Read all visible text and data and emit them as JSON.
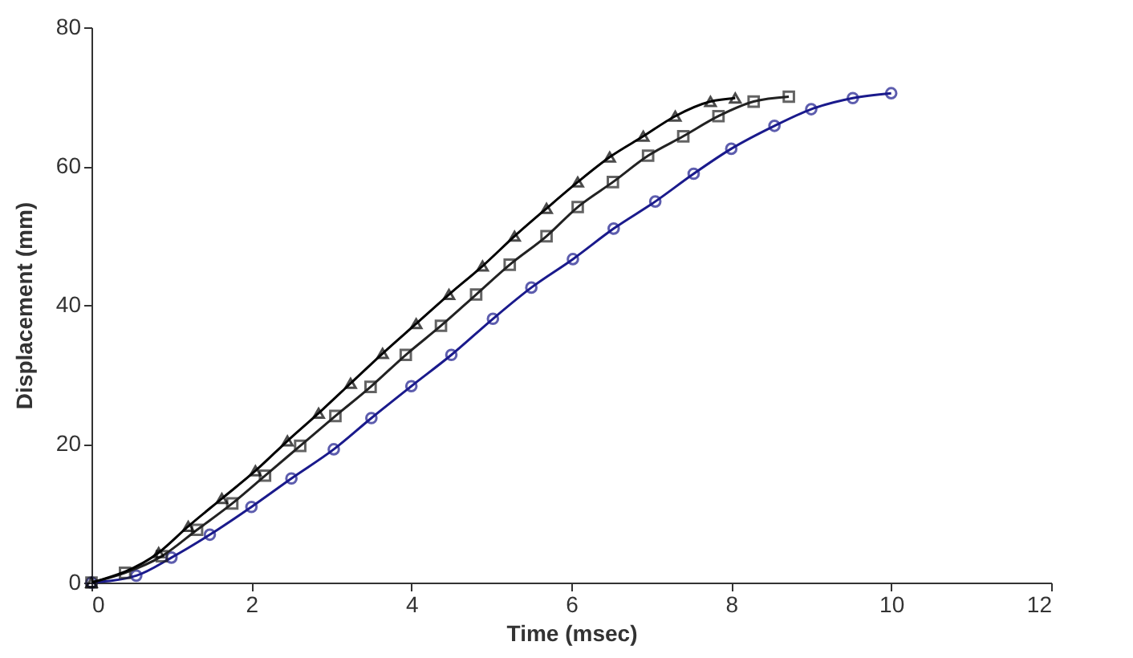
{
  "chart_data": {
    "type": "line",
    "xlabel": "Time (msec)",
    "ylabel": "Displacement (mm)",
    "xlim": [
      0,
      12
    ],
    "ylim": [
      0,
      80
    ],
    "xticks": [
      0,
      2,
      4,
      6,
      8,
      10,
      12
    ],
    "yticks": [
      0,
      20,
      40,
      60,
      80
    ],
    "grid": false,
    "line_style": "solid",
    "series": [
      {
        "color": "#1a1a8c",
        "marker": "circle",
        "x": [
          0,
          0.56,
          1.0,
          1.48,
          2.0,
          2.5,
          3.03,
          3.5,
          4.0,
          4.5,
          5.02,
          5.5,
          6.02,
          6.53,
          7.05,
          7.53,
          8.0,
          8.54,
          9.0,
          9.52,
          10.0
        ],
        "values": [
          0,
          1,
          3.6,
          6.9,
          10.9,
          15,
          19.2,
          23.7,
          28.3,
          32.8,
          38,
          42.5,
          46.6,
          51,
          54.9,
          58.9,
          62.5,
          65.8,
          68.2,
          69.8,
          70.5
        ]
      },
      {
        "color": "#222222",
        "marker": "square",
        "x": [
          0,
          0.42,
          0.88,
          1.32,
          1.76,
          2.17,
          2.61,
          3.05,
          3.49,
          3.93,
          4.37,
          4.81,
          5.23,
          5.69,
          6.08,
          6.52,
          6.96,
          7.4,
          7.84,
          8.28,
          8.72
        ],
        "values": [
          0,
          1.4,
          3.8,
          7.6,
          11.4,
          15.4,
          19.7,
          24.0,
          28.2,
          32.8,
          37.0,
          41.5,
          45.8,
          49.9,
          54.1,
          57.7,
          61.5,
          64.3,
          67.2,
          69.3,
          70.0
        ]
      },
      {
        "color": "#000000",
        "marker": "triangle",
        "x": [
          0,
          0.84,
          1.21,
          1.63,
          2.05,
          2.45,
          2.84,
          3.24,
          3.64,
          4.06,
          4.47,
          4.89,
          5.29,
          5.69,
          6.08,
          6.48,
          6.9,
          7.3,
          7.74,
          8.05
        ],
        "values": [
          0,
          4.3,
          8.1,
          12.1,
          16.1,
          20.4,
          24.4,
          28.7,
          33.0,
          37.3,
          41.5,
          45.6,
          49.9,
          53.9,
          57.7,
          61.3,
          64.3,
          67.2,
          69.3,
          69.8
        ]
      }
    ]
  }
}
